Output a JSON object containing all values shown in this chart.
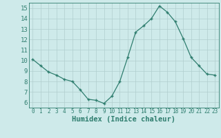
{
  "x": [
    0,
    1,
    2,
    3,
    4,
    5,
    6,
    7,
    8,
    9,
    10,
    11,
    12,
    13,
    14,
    15,
    16,
    17,
    18,
    19,
    20,
    21,
    22,
    23
  ],
  "y": [
    10.1,
    9.5,
    8.9,
    8.6,
    8.2,
    8.0,
    7.2,
    6.3,
    6.2,
    5.9,
    6.6,
    8.0,
    10.3,
    12.7,
    13.3,
    14.0,
    15.2,
    14.6,
    13.7,
    12.1,
    10.3,
    9.5,
    8.7,
    8.6
  ],
  "xlabel": "Humidex (Indice chaleur)",
  "ylim": [
    5.5,
    15.5
  ],
  "xlim": [
    -0.5,
    23.5
  ],
  "yticks": [
    6,
    7,
    8,
    9,
    10,
    11,
    12,
    13,
    14,
    15
  ],
  "xticks": [
    0,
    1,
    2,
    3,
    4,
    5,
    6,
    7,
    8,
    9,
    10,
    11,
    12,
    13,
    14,
    15,
    16,
    17,
    18,
    19,
    20,
    21,
    22,
    23
  ],
  "line_color": "#2e7d6e",
  "marker": "+",
  "bg_color": "#ceeaea",
  "grid_color": "#b0cece",
  "axis_label_color": "#2e7d6e",
  "tick_color": "#2e7d6e",
  "xlabel_fontsize": 7.5,
  "ytick_fontsize": 6.5,
  "xtick_fontsize": 5.5
}
